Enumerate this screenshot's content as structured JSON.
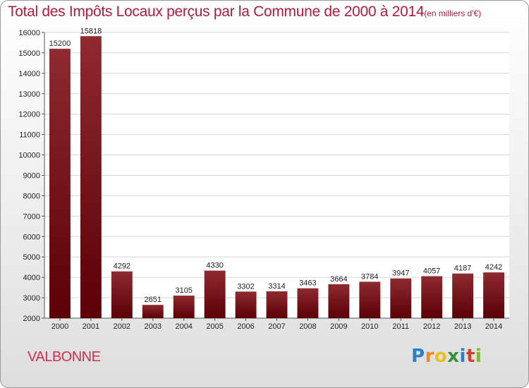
{
  "title": "Total des Impôts Locaux perçus par la Commune de 2000 à 2014",
  "title_unit": "(en milliers d'€)",
  "commune": "VALBONNE",
  "logo": {
    "letters": [
      "P",
      "r",
      "o",
      "x",
      "i",
      "t",
      "i"
    ],
    "colors": [
      "#2a7fc9",
      "#f08a1c",
      "#e8c21c",
      "#3a8f3a",
      "#2a7fc9",
      "#d0422a",
      "#7ab82a"
    ]
  },
  "colors": {
    "bar_top": "#8e2a30",
    "bar_bottom": "#5a0006",
    "title": "#b01c3c"
  },
  "chart_data": {
    "type": "bar",
    "categories": [
      "2000",
      "2001",
      "2002",
      "2003",
      "2004",
      "2005",
      "2006",
      "2007",
      "2008",
      "2009",
      "2010",
      "2011",
      "2012",
      "2013",
      "2014"
    ],
    "values": [
      15200,
      15818,
      4292,
      2651,
      3105,
      4330,
      3302,
      3314,
      3463,
      3664,
      3784,
      3947,
      4057,
      4187,
      4242
    ],
    "yticks": [
      "2000",
      "3000",
      "4000",
      "5000",
      "6000",
      "7000",
      "8000",
      "9000",
      "10000",
      "11000",
      "12000",
      "13000",
      "14000",
      "15000",
      "16000"
    ],
    "ylim": [
      2000,
      16000
    ],
    "grid": true,
    "title": "Total des Impôts Locaux perçus par la Commune de 2000 à 2014",
    "xlabel": "",
    "ylabel": ""
  }
}
